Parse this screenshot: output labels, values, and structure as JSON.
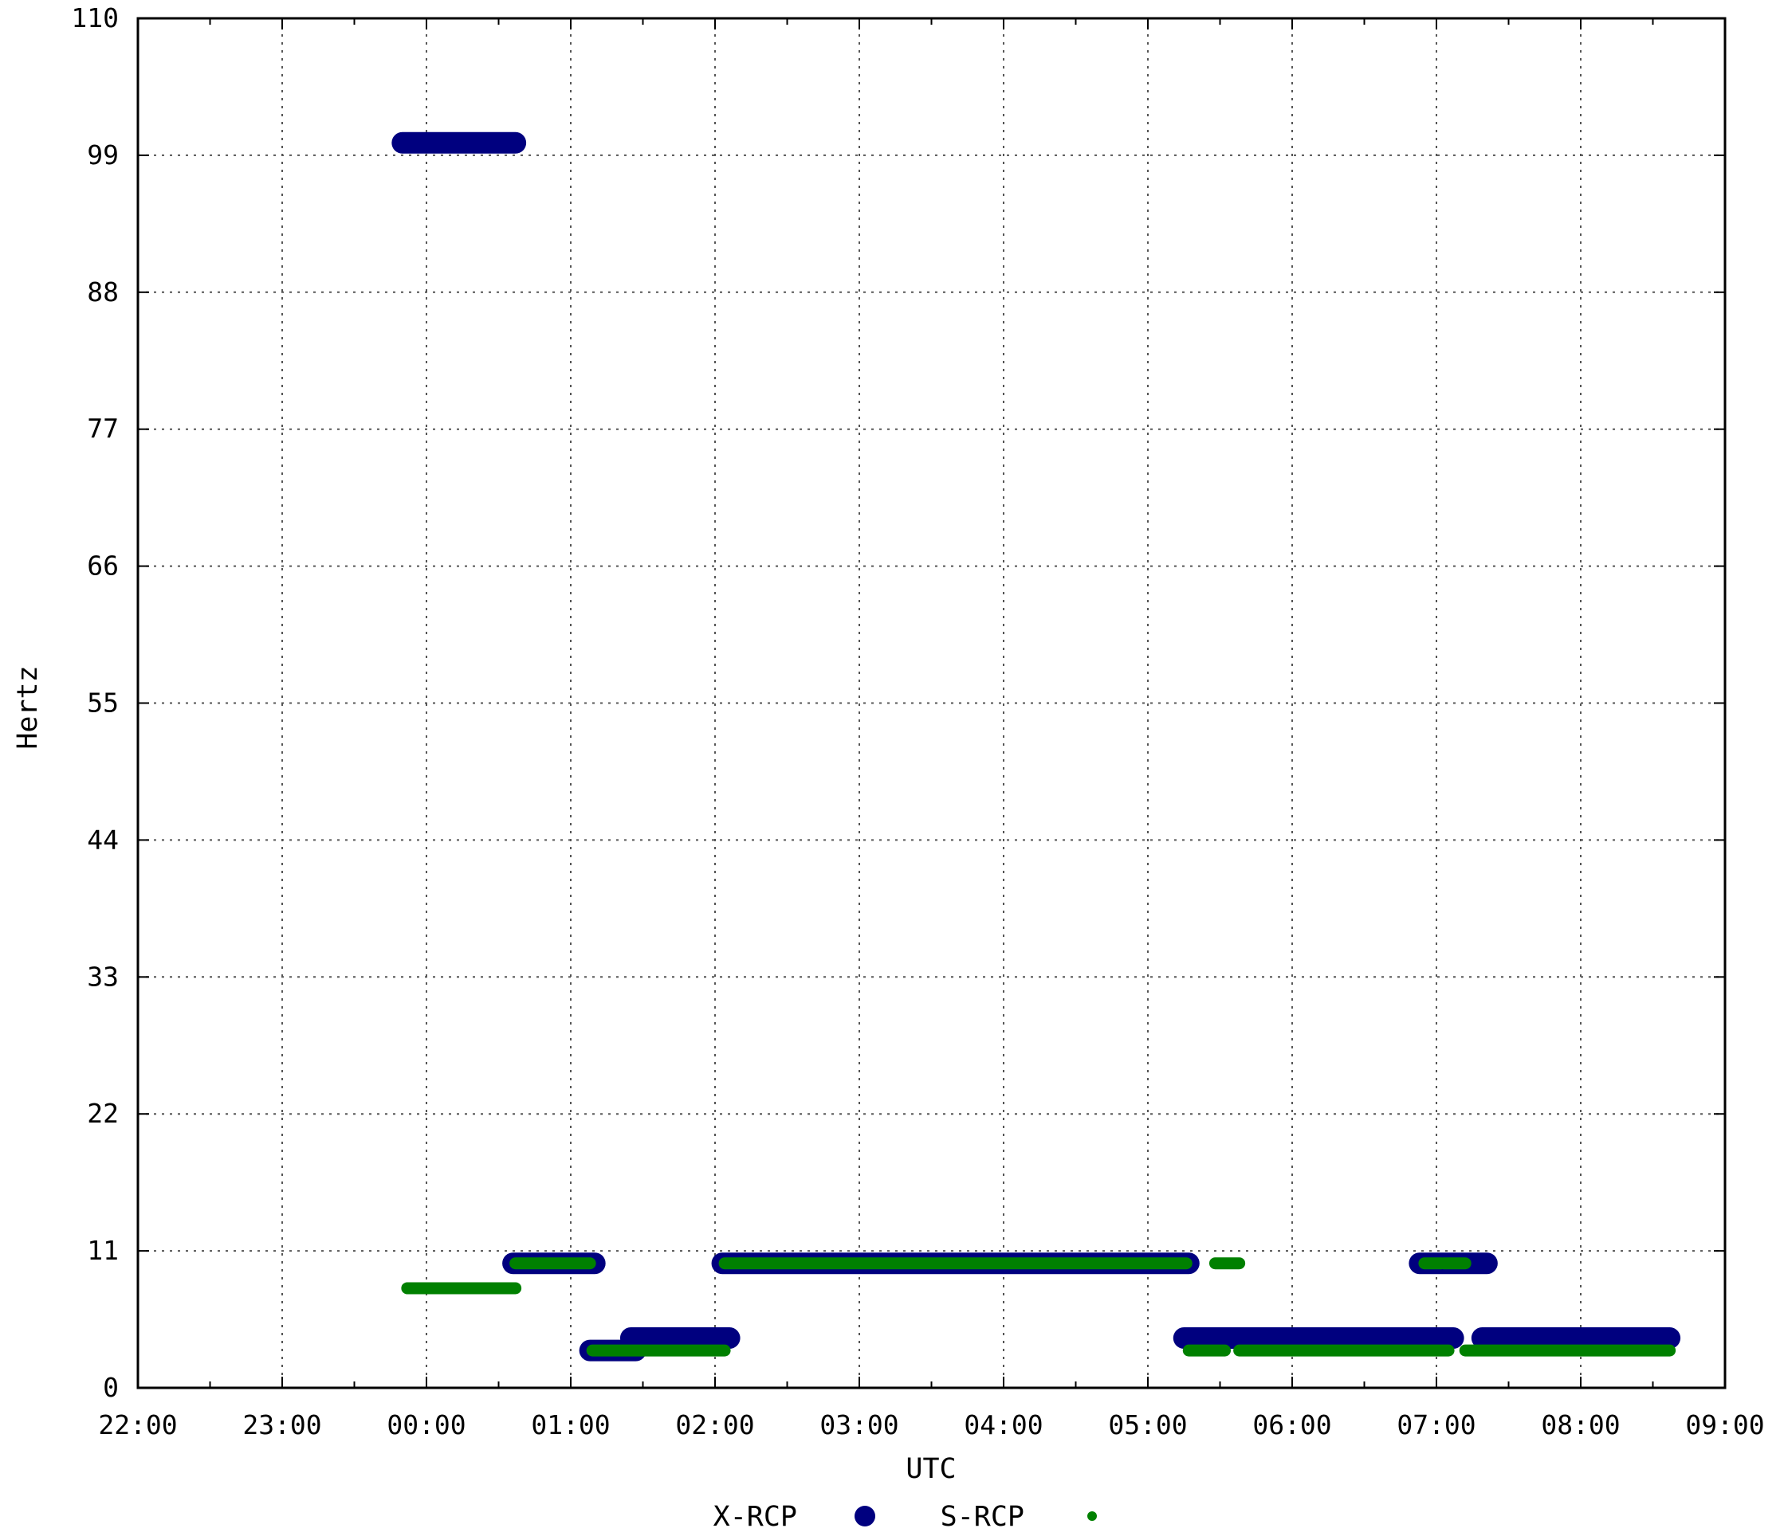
{
  "chart_data": {
    "type": "scatter",
    "xlabel": "UTC",
    "ylabel": "Hertz",
    "xlim": [
      "22:00",
      "09:00"
    ],
    "ylim": [
      0,
      110
    ],
    "x_ticks": [
      "22:00",
      "23:00",
      "00:00",
      "01:00",
      "02:00",
      "03:00",
      "04:00",
      "05:00",
      "06:00",
      "07:00",
      "08:00",
      "09:00"
    ],
    "y_ticks": [
      0,
      11,
      22,
      33,
      44,
      55,
      66,
      77,
      88,
      99,
      110
    ],
    "grid": true,
    "legend_position": "bottom-center",
    "series": [
      {
        "name": "X-RCP",
        "color": "#00007f",
        "marker": "large-dot",
        "segments": [
          {
            "start": "23:50",
            "end": "00:37",
            "y": 100
          },
          {
            "start": "00:36",
            "end": "01:10",
            "y": 10
          },
          {
            "start": "01:08",
            "end": "01:27",
            "y": 3
          },
          {
            "start": "01:25",
            "end": "02:06",
            "y": 4
          },
          {
            "start": "02:03",
            "end": "05:17",
            "y": 10
          },
          {
            "start": "05:15",
            "end": "07:07",
            "y": 4
          },
          {
            "start": "06:53",
            "end": "07:21",
            "y": 10
          },
          {
            "start": "07:19",
            "end": "08:37",
            "y": 4
          }
        ]
      },
      {
        "name": "S-RCP",
        "color": "#008000",
        "marker": "small-dot",
        "segments": [
          {
            "start": "23:52",
            "end": "00:37",
            "y": 8
          },
          {
            "start": "00:37",
            "end": "01:08",
            "y": 10
          },
          {
            "start": "01:09",
            "end": "02:04",
            "y": 3
          },
          {
            "start": "02:04",
            "end": "05:16",
            "y": 10
          },
          {
            "start": "05:28",
            "end": "05:38",
            "y": 10
          },
          {
            "start": "05:17",
            "end": "05:32",
            "y": 3
          },
          {
            "start": "05:38",
            "end": "07:05",
            "y": 3
          },
          {
            "start": "06:55",
            "end": "07:02",
            "y": 10
          },
          {
            "start": "07:03",
            "end": "07:12",
            "y": 10
          },
          {
            "start": "07:12",
            "end": "08:37",
            "y": 3
          }
        ]
      }
    ]
  }
}
